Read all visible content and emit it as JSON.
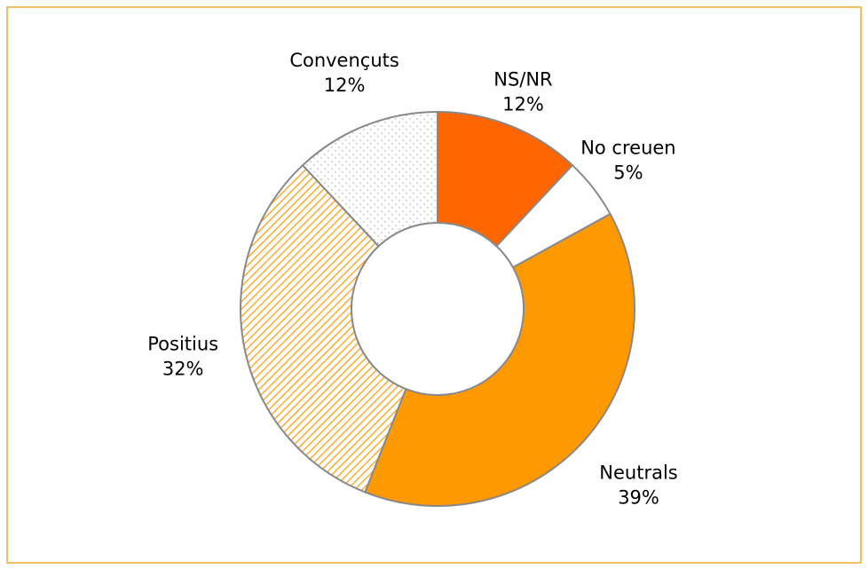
{
  "chart_data": {
    "type": "donut",
    "categories": [
      "NS/NR",
      "No creuen",
      "Neutrals",
      "Positius",
      "Convençuts"
    ],
    "values": [
      12,
      5,
      39,
      32,
      12
    ],
    "value_labels": [
      "12%",
      "5%",
      "39%",
      "32%",
      "12%"
    ],
    "colors": [
      "#ff6600",
      "#ffffff",
      "#ff9900",
      "#ff9900",
      "#bdbdbd"
    ],
    "patterns": [
      null,
      null,
      null,
      "hatch",
      "dots"
    ]
  }
}
